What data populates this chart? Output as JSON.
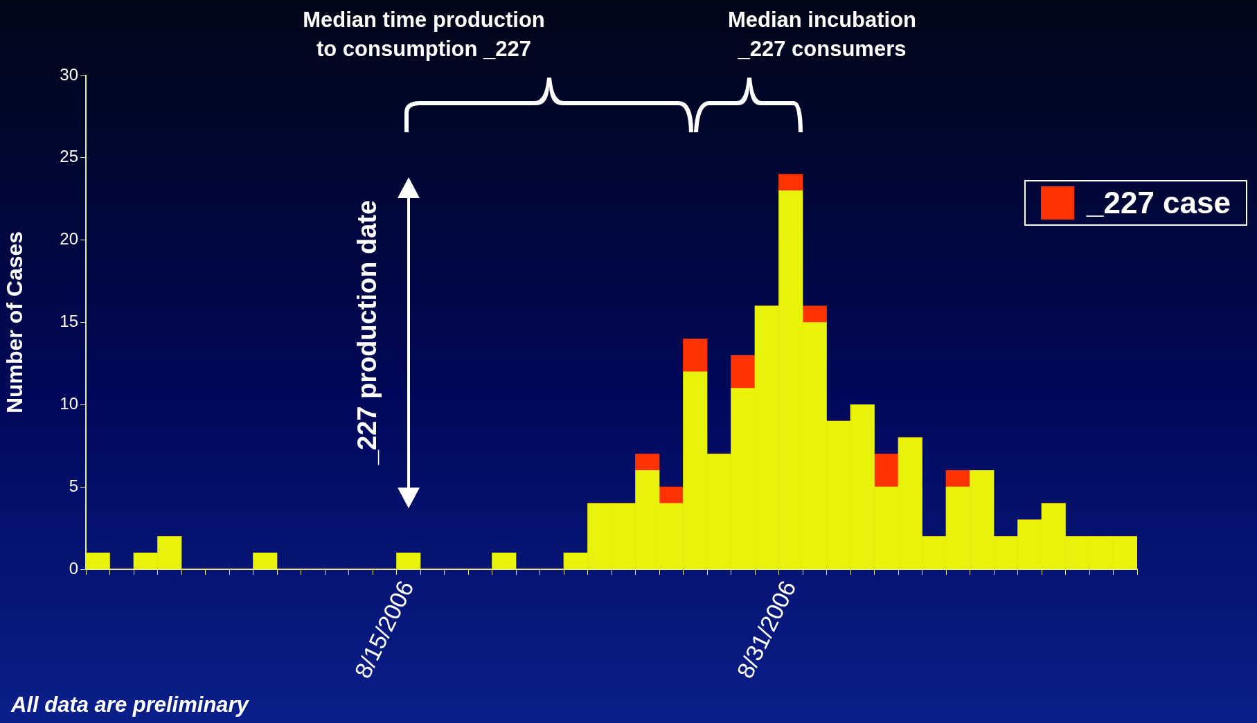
{
  "chart_data": {
    "type": "bar",
    "stacked": true,
    "ylabel": "Number of Cases",
    "categories": [
      null,
      null,
      null,
      null,
      null,
      null,
      null,
      null,
      null,
      null,
      null,
      null,
      null,
      "8/15/2006",
      null,
      null,
      null,
      null,
      null,
      null,
      null,
      null,
      null,
      null,
      null,
      null,
      null,
      null,
      null,
      "8/31/2006",
      null,
      null,
      null,
      null,
      null,
      null,
      null,
      null,
      null,
      null,
      null,
      null,
      null,
      null
    ],
    "series": [
      {
        "color": "#e8f20a",
        "values": [
          1,
          0,
          1,
          2,
          0,
          0,
          0,
          1,
          0,
          0,
          0,
          0,
          0,
          1,
          0,
          0,
          0,
          1,
          0,
          0,
          1,
          4,
          4,
          6,
          4,
          12,
          7,
          11,
          16,
          23,
          15,
          9,
          10,
          5,
          8,
          2,
          5,
          6,
          2,
          3,
          4,
          2,
          2,
          2
        ]
      },
      {
        "name": "_227 case",
        "color": "#ff3300",
        "values": [
          0,
          0,
          0,
          0,
          0,
          0,
          0,
          0,
          0,
          0,
          0,
          0,
          0,
          0,
          0,
          0,
          0,
          0,
          0,
          0,
          0,
          0,
          0,
          1,
          1,
          2,
          0,
          2,
          0,
          1,
          1,
          0,
          0,
          2,
          0,
          0,
          1,
          0,
          0,
          0,
          0,
          0,
          0,
          0
        ]
      }
    ],
    "ylim": [
      0,
      30
    ],
    "yticks": [
      0,
      5,
      10,
      15,
      20,
      25,
      30
    ],
    "grid": false,
    "legend": "top right",
    "annotations": [
      "Median time production to consumption _227",
      "Median incubation _227 consumers",
      "_227 production date",
      "All data are preliminary"
    ]
  }
}
